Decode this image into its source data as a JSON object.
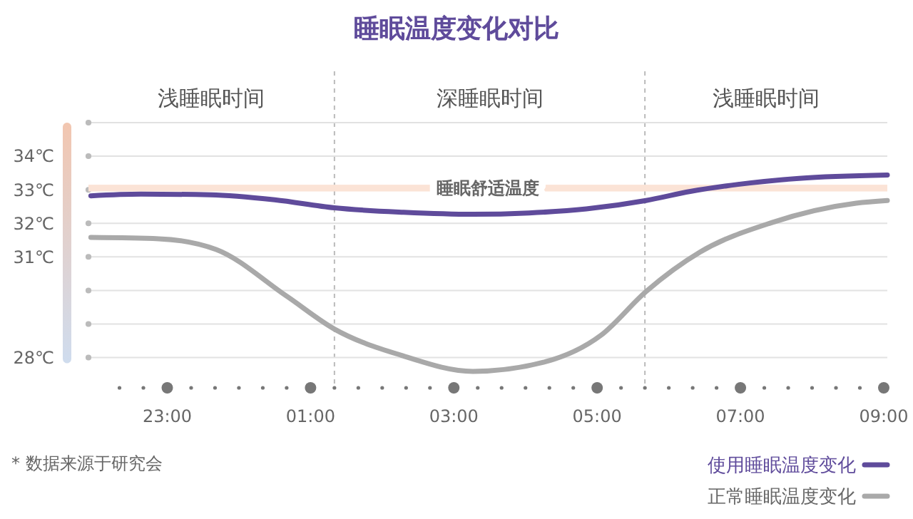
{
  "chart_data": {
    "type": "line",
    "title": "睡眠温度变化对比",
    "xlim": [
      "2000-01-01T21:54",
      "2000-01-02T09:03"
    ],
    "ylim": [
      27.1,
      35
    ],
    "xticks": [
      {
        "value": "2000-01-01T23:00",
        "label": "23:00"
      },
      {
        "value": "2000-01-02T01:00",
        "label": "01:00"
      },
      {
        "value": "2000-01-02T03:00",
        "label": "03:00"
      },
      {
        "value": "2000-01-02T05:00",
        "label": "05:00"
      },
      {
        "value": "2000-01-02T07:00",
        "label": "07:00"
      },
      {
        "value": "2000-01-02T09:00",
        "label": "09:00"
      }
    ],
    "yticks": [
      {
        "value": 28,
        "label": "28℃"
      },
      {
        "value": 29,
        "label": null
      },
      {
        "value": 30,
        "label": null
      },
      {
        "value": 31,
        "label": "31℃"
      },
      {
        "value": 32,
        "label": "32℃"
      },
      {
        "value": 33,
        "label": "33℃"
      },
      {
        "value": 34,
        "label": "34℃"
      },
      {
        "value": 35,
        "label": null
      }
    ],
    "grid": "y",
    "legend": "bottom right",
    "line_style": "solid",
    "marker": "none",
    "ref_lines": [
      {
        "axis": "x",
        "value": "2000-01-02T01:20",
        "line_style": "dashed",
        "color": "#bbbbbb"
      },
      {
        "axis": "x",
        "value": "2000-01-02T05:40",
        "line_style": "dashed",
        "color": "#bbbbbb"
      }
    ],
    "bands": [
      {
        "axis": "y",
        "from": 32.95,
        "to": 33.15,
        "label": "睡眠舒适温度",
        "color": "#fbe3d6"
      }
    ],
    "series": [
      {
        "name": "使用睡眠温度变化",
        "color": "#5f4b9b",
        "x": [
          "2000-01-01T21:56",
          "2000-01-01T22:38",
          "2000-01-01T23:36",
          "2000-01-02T00:30",
          "2000-01-02T01:20",
          "2000-01-02T02:18",
          "2000-01-02T03:16",
          "2000-01-02T04:03",
          "2000-01-02T04:51",
          "2000-01-02T05:41",
          "2000-01-02T06:18",
          "2000-01-02T06:58",
          "2000-01-02T07:49",
          "2000-01-02T09:03"
        ],
        "values": [
          32.82,
          32.87,
          32.85,
          32.7,
          32.46,
          32.33,
          32.27,
          32.31,
          32.43,
          32.68,
          32.95,
          33.16,
          33.34,
          33.44
        ]
      },
      {
        "name": "正常睡眠温度变化",
        "color": "#a9a9a9",
        "x": [
          "2000-01-01T21:56",
          "2000-01-01T22:53",
          "2000-01-01T23:41",
          "2000-01-02T00:40",
          "2000-01-02T01:20",
          "2000-01-02T02:16",
          "2000-01-02T03:16",
          "2000-01-02T04:15",
          "2000-01-02T05:03",
          "2000-01-02T05:41",
          "2000-01-02T06:26",
          "2000-01-02T07:26",
          "2000-01-02T08:37",
          "2000-01-02T09:03"
        ],
        "values": [
          31.58,
          31.54,
          31.22,
          29.83,
          28.85,
          28.07,
          27.59,
          27.86,
          28.66,
          29.97,
          31.14,
          32.02,
          32.6,
          32.68
        ]
      }
    ],
    "annotations": [
      "浅睡眠时间",
      "深睡眠时间",
      "浅睡眠时间",
      "* 数据来源于研究会"
    ]
  }
}
